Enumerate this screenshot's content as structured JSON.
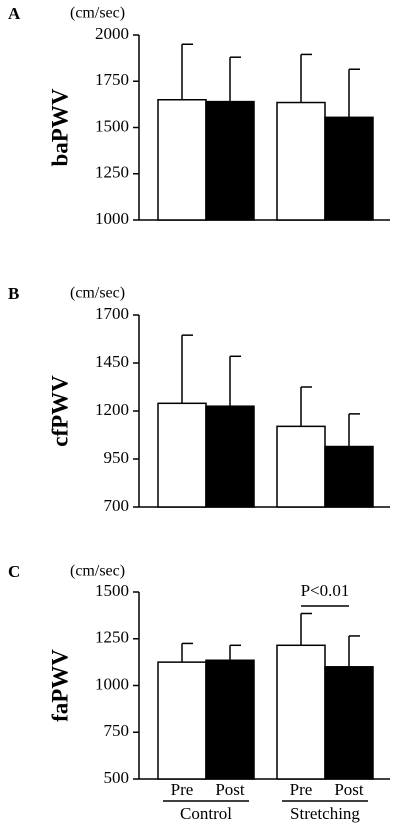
{
  "chart_data": [
    {
      "type": "bar",
      "panel": "A",
      "unit": "(cm/sec)",
      "ylabel": "baPWV",
      "ylim": [
        1000,
        2000
      ],
      "yticks": [
        1000,
        1250,
        1500,
        1750,
        2000
      ],
      "series": [
        {
          "color": "#ffffff",
          "values": [
            1650,
            1635
          ],
          "errors": [
            300,
            260
          ]
        },
        {
          "color": "#000000",
          "values": [
            1640,
            1555
          ],
          "errors": [
            240,
            260
          ]
        }
      ]
    },
    {
      "type": "bar",
      "panel": "B",
      "unit": "(cm/sec)",
      "ylabel": "cfPWV",
      "ylim": [
        700,
        1700
      ],
      "yticks": [
        700,
        950,
        1200,
        1450,
        1700
      ],
      "series": [
        {
          "color": "#ffffff",
          "values": [
            1240,
            1120
          ],
          "errors": [
            355,
            205
          ]
        },
        {
          "color": "#000000",
          "values": [
            1225,
            1015
          ],
          "errors": [
            260,
            170
          ]
        }
      ]
    },
    {
      "type": "bar",
      "panel": "C",
      "unit": "(cm/sec)",
      "ylabel": "faPWV",
      "ylim": [
        500,
        1500
      ],
      "yticks": [
        500,
        750,
        1000,
        1250,
        1500
      ],
      "categories": [
        "Control",
        "Stretching"
      ],
      "series": [
        {
          "name": "Pre",
          "color": "#ffffff",
          "values": [
            1125,
            1215
          ],
          "errors": [
            100,
            170
          ]
        },
        {
          "name": "Post",
          "color": "#000000",
          "values": [
            1135,
            1100
          ],
          "errors": [
            80,
            165
          ]
        }
      ],
      "annotation": "P<0.01"
    }
  ]
}
